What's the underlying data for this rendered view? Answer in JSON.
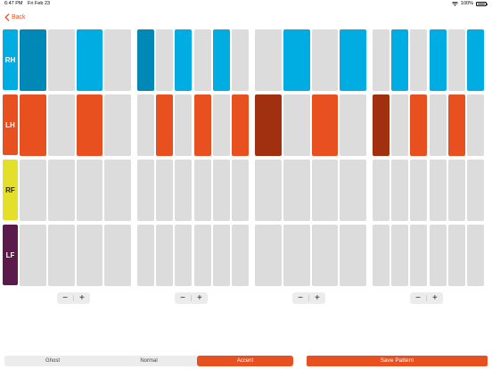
{
  "status_bar": {
    "time": "6:47 PM",
    "date": "Fri Feb 23",
    "battery": "100%"
  },
  "nav": {
    "back_label": "Back"
  },
  "colors": {
    "cell_off": "#dcdcdc",
    "hand_normal": "#00ade3",
    "hand_accent": "#0088b7",
    "foot_normal": "#e8501f",
    "foot_accent": "#a0300f",
    "brand": "#e8501f"
  },
  "rows": [
    {
      "label": "RH",
      "color": "#00ade3",
      "text_dark": false
    },
    {
      "label": "LH",
      "color": "#e8501f",
      "text_dark": false
    },
    {
      "label": "RF",
      "color": "#e4e02a",
      "text_dark": true
    },
    {
      "label": "LF",
      "color": "#5a1a4a",
      "text_dark": false
    }
  ],
  "beats": [
    {
      "subdivisions": 4,
      "rows": [
        [
          2,
          0,
          1,
          0
        ],
        [
          1,
          0,
          1,
          0
        ],
        [
          0,
          0,
          0,
          0
        ],
        [
          0,
          0,
          0,
          0
        ]
      ]
    },
    {
      "subdivisions": 6,
      "rows": [
        [
          2,
          0,
          1,
          0,
          1,
          0
        ],
        [
          0,
          1,
          0,
          1,
          0,
          1
        ],
        [
          0,
          0,
          0,
          0,
          0,
          0
        ],
        [
          0,
          0,
          0,
          0,
          0,
          0
        ]
      ]
    },
    {
      "subdivisions": 4,
      "rows": [
        [
          0,
          1,
          0,
          1
        ],
        [
          2,
          0,
          1,
          0
        ],
        [
          0,
          0,
          0,
          0
        ],
        [
          0,
          0,
          0,
          0
        ]
      ]
    },
    {
      "subdivisions": 6,
      "rows": [
        [
          0,
          1,
          0,
          1,
          0,
          1
        ],
        [
          2,
          0,
          1,
          0,
          1,
          0
        ],
        [
          0,
          0,
          0,
          0,
          0,
          0
        ],
        [
          0,
          0,
          0,
          0,
          0,
          0
        ]
      ]
    }
  ],
  "steppers": {
    "minus_label": "−",
    "plus_label": "+"
  },
  "dynamics": {
    "options": [
      "Ghost",
      "Normal",
      "Accent"
    ],
    "selected": "Accent"
  },
  "save_label": "Save Pattern"
}
